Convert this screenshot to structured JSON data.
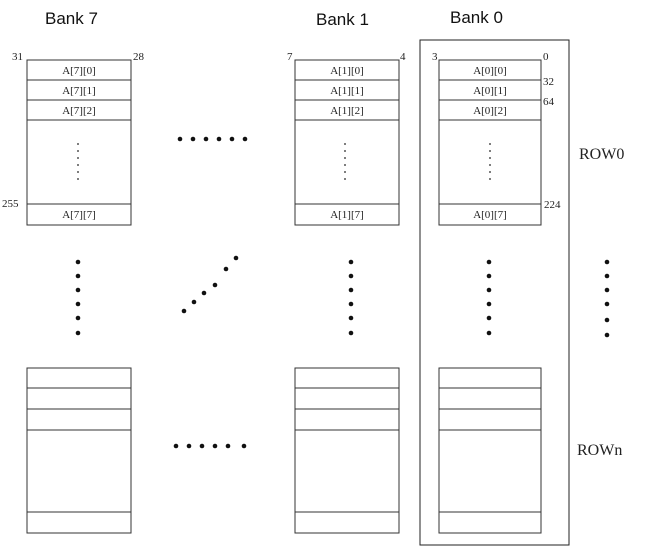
{
  "banks": [
    {
      "title": "Bank 7",
      "bit_high": "31",
      "bit_low": "28",
      "byte_left": "255",
      "byte_right": "",
      "cells": [
        "A[7][0]",
        "A[7][1]",
        "A[7][2]"
      ],
      "last_cell": "A[7][7]"
    },
    {
      "title": "Bank 1",
      "bit_high": "7",
      "bit_low": "4",
      "byte_left": "",
      "byte_right": "",
      "cells": [
        "A[1][0]",
        "A[1][1]",
        "A[1][2]"
      ],
      "last_cell": "A[1][7]"
    },
    {
      "title": "Bank 0",
      "bit_high": "3",
      "bit_low": "0",
      "byte_left": "",
      "byte_right": "224",
      "cells": [
        "A[0][0]",
        "A[0][1]",
        "A[0][2]"
      ],
      "last_cell": "A[0][7]",
      "offsets": [
        "32",
        "64"
      ]
    }
  ],
  "row_labels": {
    "row0": "ROW0",
    "rown": "ROWn"
  }
}
